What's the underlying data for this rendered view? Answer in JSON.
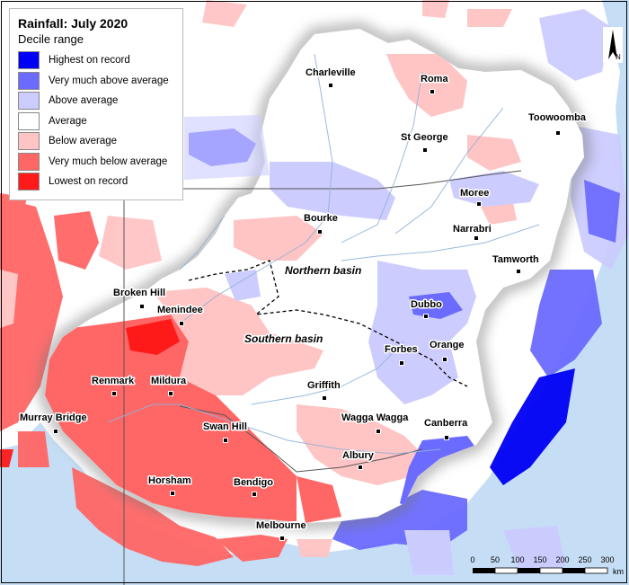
{
  "legend": {
    "title": "Rainfall: July 2020",
    "subtitle": "Decile range",
    "items": [
      {
        "label": "Highest on record",
        "color": "#0000f5"
      },
      {
        "label": "Very much above average",
        "color": "#6b6bff"
      },
      {
        "label": "Above average",
        "color": "#ccccff"
      },
      {
        "label": "Average",
        "color": "#ffffff"
      },
      {
        "label": "Below average",
        "color": "#ffc4c4"
      },
      {
        "label": "Very much below average",
        "color": "#ff6666"
      },
      {
        "label": "Lowest on record",
        "color": "#ff1a1a"
      }
    ]
  },
  "towns": [
    "Charleville",
    "Roma",
    "Toowoomba",
    "St George",
    "Moree",
    "Bourke",
    "Narrabri",
    "Tamworth",
    "Broken Hill",
    "Menindee",
    "Dubbo",
    "Orange",
    "Forbes",
    "Renmark",
    "Mildura",
    "Griffith",
    "Murray Bridge",
    "Wagga Wagga",
    "Canberra",
    "Swan Hill",
    "Albury",
    "Horsham",
    "Bendigo",
    "Melbourne"
  ],
  "basins": [
    "Northern basin",
    "Southern basin"
  ],
  "scale": {
    "ticks": [
      "0",
      "50",
      "100",
      "150",
      "200",
      "250",
      "300"
    ],
    "unit": "km"
  },
  "north_label": "N"
}
